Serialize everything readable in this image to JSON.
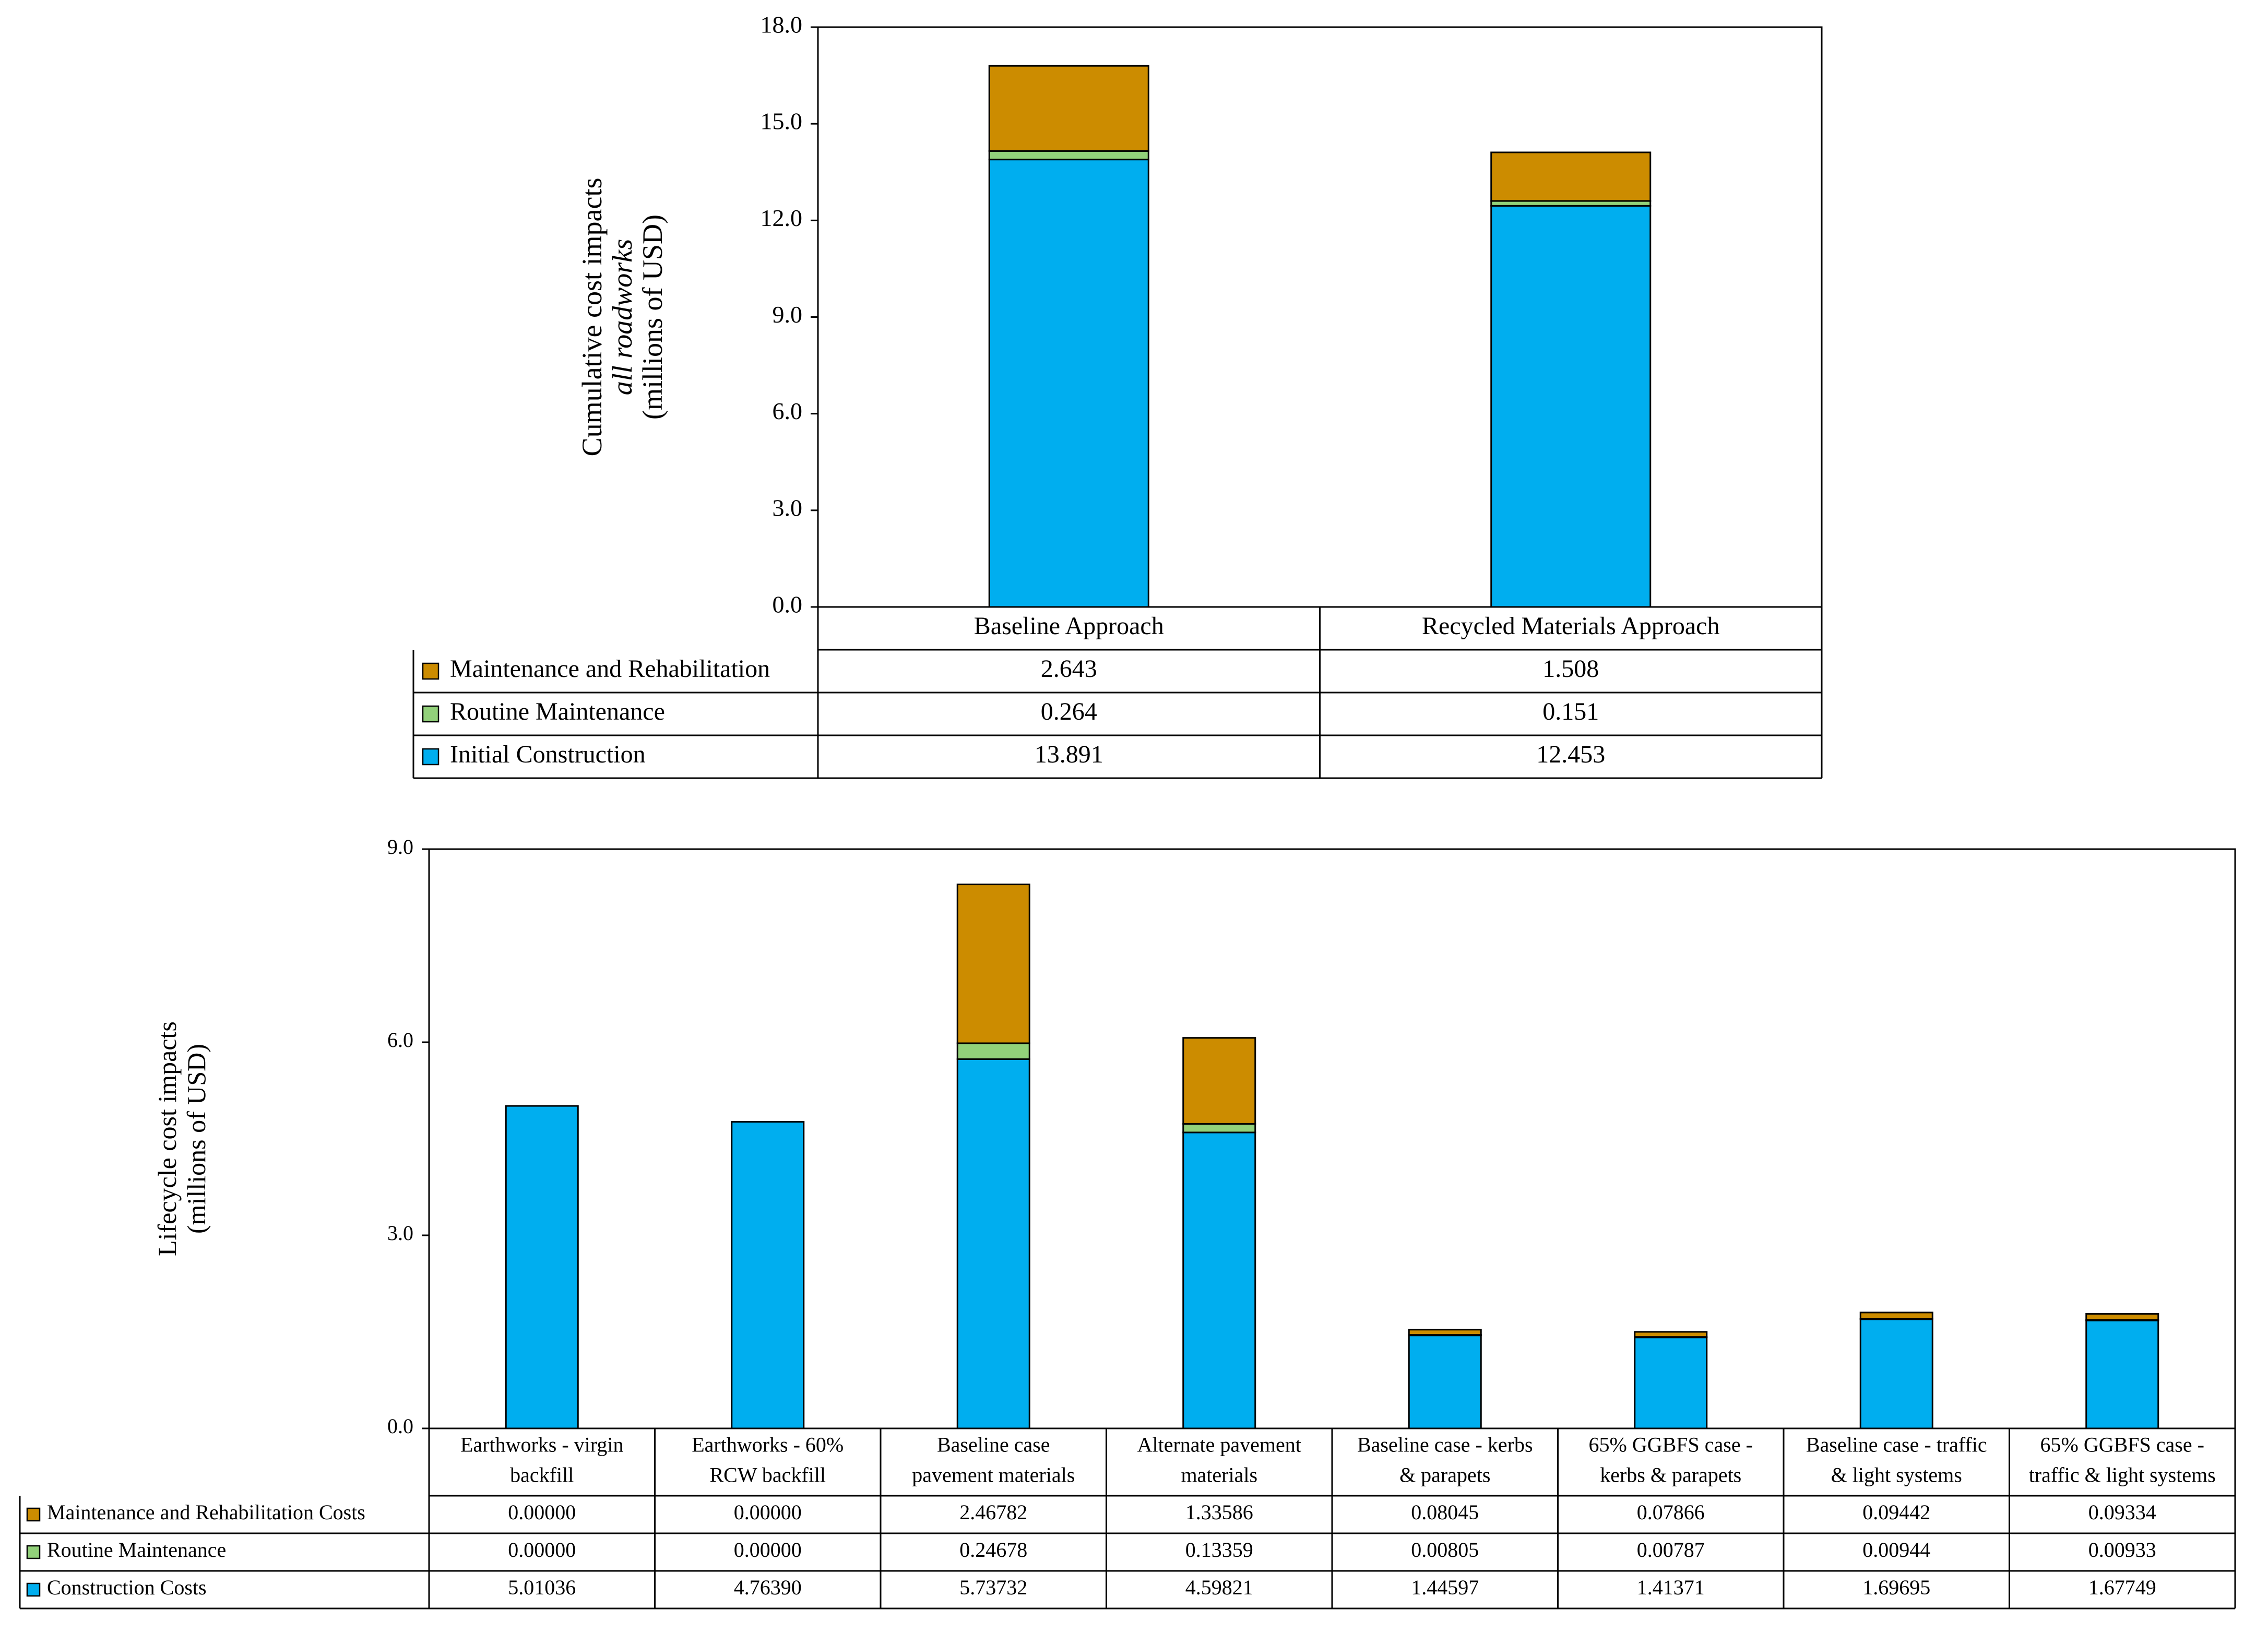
{
  "colors": {
    "maintenance": "#CC8C00",
    "routine": "#92D17A",
    "construction": "#00AEEF",
    "line": "#000000"
  },
  "chart_data": [
    {
      "type": "bar",
      "stacked": true,
      "ylabel_lines": [
        "Cumulative cost impacts",
        "all roadworks",
        "(millions of USD)"
      ],
      "ylim": [
        0,
        18
      ],
      "yticks": [
        "0.0",
        "3.0",
        "6.0",
        "9.0",
        "12.0",
        "15.0",
        "18.0"
      ],
      "categories": [
        "Baseline Approach",
        "Recycled Materials Approach"
      ],
      "series": [
        {
          "name": "Maintenance and Rehabilitation",
          "color_key": "maintenance",
          "values": [
            2.643,
            1.508
          ],
          "labels": [
            "2.643",
            "1.508"
          ]
        },
        {
          "name": "Routine Maintenance",
          "color_key": "routine",
          "values": [
            0.264,
            0.151
          ],
          "labels": [
            "0.264",
            "0.151"
          ]
        },
        {
          "name": "Initial Construction",
          "color_key": "construction",
          "values": [
            13.891,
            12.453
          ],
          "labels": [
            "13.891",
            "12.453"
          ]
        }
      ]
    },
    {
      "type": "bar",
      "stacked": true,
      "ylabel_lines": [
        "Lifecycle cost impacts",
        "(millions of USD)"
      ],
      "ylim": [
        0,
        9
      ],
      "yticks": [
        "0.0",
        "3.0",
        "6.0",
        "9.0"
      ],
      "categories": [
        [
          "Earthworks - virgin",
          "backfill"
        ],
        [
          "Earthworks - 60%",
          "RCW backfill"
        ],
        [
          "Baseline case",
          "pavement materials"
        ],
        [
          "Alternate pavement",
          "materials"
        ],
        [
          "Baseline case - kerbs",
          "& parapets"
        ],
        [
          "65% GGBFS case -",
          "kerbs & parapets"
        ],
        [
          "Baseline case - traffic",
          "& light systems"
        ],
        [
          "65% GGBFS case -",
          "traffic & light systems"
        ]
      ],
      "series": [
        {
          "name": "Maintenance and Rehabilitation Costs",
          "color_key": "maintenance",
          "values": [
            0.0,
            0.0,
            2.46782,
            1.33586,
            0.08045,
            0.07866,
            0.09442,
            0.09334
          ],
          "labels": [
            "0.00000",
            "0.00000",
            "2.46782",
            "1.33586",
            "0.08045",
            "0.07866",
            "0.09442",
            "0.09334"
          ]
        },
        {
          "name": "Routine Maintenance",
          "color_key": "routine",
          "values": [
            0.0,
            0.0,
            0.24678,
            0.13359,
            0.00805,
            0.00787,
            0.00944,
            0.00933
          ],
          "labels": [
            "0.00000",
            "0.00000",
            "0.24678",
            "0.13359",
            "0.00805",
            "0.00787",
            "0.00944",
            "0.00933"
          ]
        },
        {
          "name": "Construction Costs",
          "color_key": "construction",
          "values": [
            5.01036,
            4.7639,
            5.73732,
            4.59821,
            1.44597,
            1.41371,
            1.69695,
            1.67749
          ],
          "labels": [
            "5.01036",
            "4.76390",
            "5.73732",
            "4.59821",
            "1.44597",
            "1.41371",
            "1.69695",
            "1.67749"
          ]
        }
      ]
    }
  ]
}
